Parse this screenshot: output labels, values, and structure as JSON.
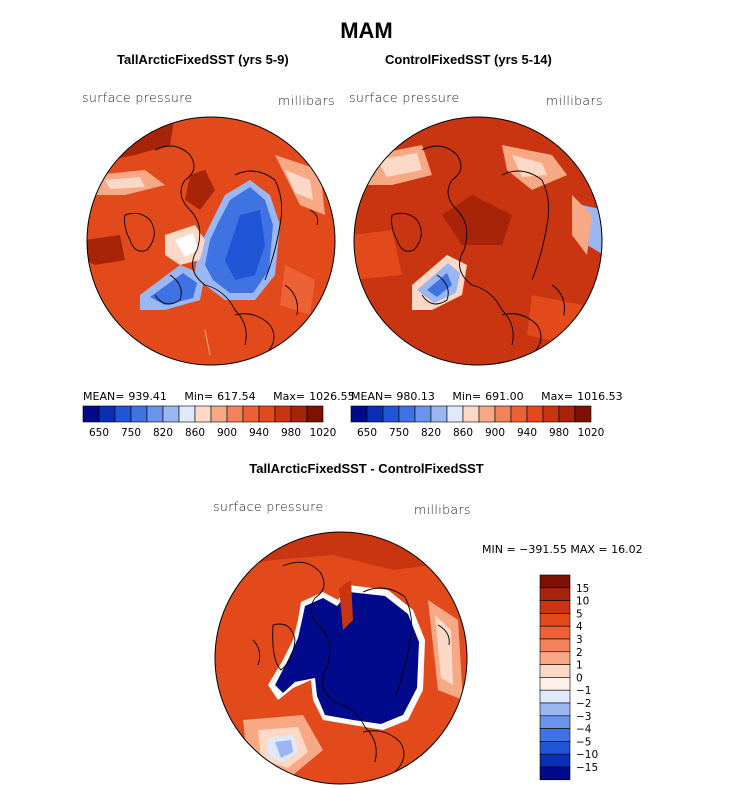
{
  "title": "MAM",
  "panels": [
    {
      "id": "tall",
      "title": "TallArcticFixedSST (yrs 5-9)",
      "field_label": "surface pressure",
      "units": "millibars",
      "mean_label": "MEAN=",
      "mean": "939.41",
      "min_label": "Min=",
      "min": "617.54",
      "max_label": "Max=",
      "max": "1026.55"
    },
    {
      "id": "control",
      "title": "ControlFixedSST (yrs 5-14)",
      "field_label": "surface pressure",
      "units": "millibars",
      "mean_label": "MEAN=",
      "mean": "980.13",
      "min_label": "Min=",
      "min": "691.00",
      "max_label": "Max=",
      "max": "1016.53"
    },
    {
      "id": "diff",
      "title": "TallArcticFixedSST - ControlFixedSST",
      "field_label": "surface pressure",
      "units": "millibars",
      "stats_text": "MIN = −391.55 MAX =   16.02"
    }
  ],
  "colorbar_horizontal": {
    "colors": [
      "#000a8a",
      "#0a2fb5",
      "#1f55d6",
      "#3f72e3",
      "#6a93ec",
      "#9bb7f2",
      "#dfe9fb",
      "#fbd9c6",
      "#f7a986",
      "#f2825a",
      "#ec6136",
      "#e24a1c",
      "#c93510",
      "#a82408",
      "#7d1003"
    ],
    "labels": [
      "650",
      "750",
      "820",
      "860",
      "900",
      "940",
      "980",
      "1020"
    ],
    "label_positions_index": [
      1,
      3,
      5,
      7,
      9,
      11,
      13,
      15
    ]
  },
  "colorbar_vertical": {
    "colors": [
      "#7d1003",
      "#a82408",
      "#c93510",
      "#e24a1c",
      "#ec6136",
      "#f2825a",
      "#f7a986",
      "#fbd9c6",
      "#fdf0e6",
      "#dfe9fb",
      "#9bb7f2",
      "#6a93ec",
      "#3f72e3",
      "#1f55d6",
      "#0a2fb5",
      "#000a8a"
    ],
    "labels": [
      "15",
      "10",
      "5",
      "4",
      "3",
      "2",
      "1",
      "0",
      "−1",
      "−2",
      "−3",
      "−4",
      "−5",
      "−10",
      "−15"
    ]
  },
  "map_colors": {
    "background_red": "#e24a1c",
    "dark_red": "#a82408",
    "light_orange": "#f7a986",
    "pale": "#fbd9c6",
    "white": "#ffffff",
    "light_blue": "#9bb7f2",
    "blue": "#1f55d6",
    "dark_blue": "#000a8a",
    "coast": "#000000"
  }
}
